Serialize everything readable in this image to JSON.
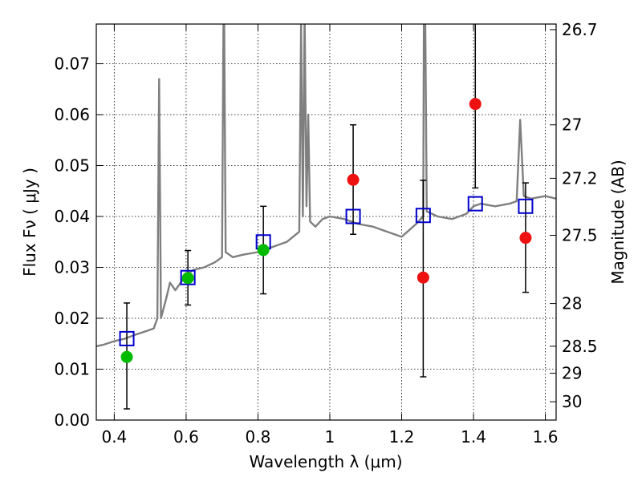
{
  "chart_data": {
    "type": "scatter",
    "title": "",
    "xlabel": "Wavelength  λ (μm)",
    "ylabel": "Flux  Fν  ( μJy )",
    "ylabel_right": "Magnitude (AB)",
    "xlim": [
      0.35,
      1.63
    ],
    "ylim": [
      0.0,
      0.0778
    ],
    "x_ticks": [
      0.4,
      0.6,
      0.8,
      1.0,
      1.2,
      1.4,
      1.6
    ],
    "x_tick_labels": [
      "0.4",
      "0.6",
      "0.8",
      "1",
      "1.2",
      "1.4",
      "1.6"
    ],
    "y_ticks": [
      0.0,
      0.01,
      0.02,
      0.03,
      0.04,
      0.05,
      0.06,
      0.07
    ],
    "y_tick_labels": [
      "0.00",
      "0.01",
      "0.02",
      "0.03",
      "0.04",
      "0.05",
      "0.06",
      "0.07"
    ],
    "right_axis_ticks": [
      {
        "label": "26.7",
        "flux": 0.0767
      },
      {
        "label": "27",
        "flux": 0.058
      },
      {
        "label": "27.2",
        "flux": 0.0475
      },
      {
        "label": "27.5",
        "flux": 0.0363
      },
      {
        "label": "28",
        "flux": 0.0229
      },
      {
        "label": "28.5",
        "flux": 0.0145
      },
      {
        "label": "29",
        "flux": 0.0092
      },
      {
        "label": "30",
        "flux": 0.0036
      }
    ],
    "grid": true,
    "colors": {
      "spectrum": "#7f7f7f",
      "model_marker": "#0000cc",
      "green_marker": "#00bb00",
      "red_marker": "#ee1111",
      "errorbar": "#000000"
    },
    "spectrum": {
      "x": [
        0.35,
        0.37,
        0.4,
        0.43,
        0.46,
        0.49,
        0.51,
        0.52,
        0.525,
        0.53,
        0.545,
        0.555,
        0.57,
        0.58,
        0.6,
        0.62,
        0.65,
        0.68,
        0.7,
        0.705,
        0.71,
        0.73,
        0.76,
        0.8,
        0.84,
        0.88,
        0.915,
        0.92,
        0.925,
        0.93,
        0.935,
        0.94,
        0.945,
        0.96,
        0.98,
        1.0,
        1.04,
        1.08,
        1.12,
        1.16,
        1.2,
        1.24,
        1.26,
        1.262,
        1.265,
        1.27,
        1.3,
        1.34,
        1.38,
        1.4,
        1.42,
        1.46,
        1.5,
        1.52,
        1.53,
        1.54,
        1.56,
        1.6,
        1.63
      ],
      "y": [
        0.0145,
        0.0148,
        0.0155,
        0.016,
        0.0168,
        0.0175,
        0.018,
        0.02,
        0.067,
        0.02,
        0.024,
        0.027,
        0.0255,
        0.0265,
        0.0285,
        0.0295,
        0.03,
        0.031,
        0.032,
        0.09,
        0.033,
        0.032,
        0.0325,
        0.033,
        0.034,
        0.035,
        0.037,
        0.078,
        0.04,
        0.08,
        0.042,
        0.06,
        0.039,
        0.038,
        0.0395,
        0.04,
        0.0395,
        0.0385,
        0.038,
        0.037,
        0.036,
        0.0385,
        0.04,
        0.085,
        0.085,
        0.041,
        0.04,
        0.0395,
        0.0405,
        0.042,
        0.0425,
        0.042,
        0.0425,
        0.043,
        0.059,
        0.044,
        0.0435,
        0.044,
        0.0435
      ]
    },
    "series": [
      {
        "marker": "open-square",
        "color": "#0000cc",
        "x": [
          0.435,
          0.605,
          0.815,
          1.065,
          1.26,
          1.405,
          1.545
        ],
        "y": [
          0.016,
          0.028,
          0.035,
          0.04,
          0.0402,
          0.0425,
          0.042
        ]
      },
      {
        "marker": "filled-circle",
        "color": "#00bb00",
        "x": [
          0.435,
          0.605,
          0.815
        ],
        "y": [
          0.0124,
          0.0279,
          0.0334
        ],
        "yerr_low": [
          0.0102,
          0.0053,
          0.0086
        ],
        "yerr_high": [
          0.0106,
          0.0054,
          0.0086
        ]
      },
      {
        "marker": "filled-circle",
        "color": "#ee1111",
        "x": [
          1.065,
          1.26,
          1.405,
          1.545
        ],
        "y": [
          0.0472,
          0.028,
          0.0621,
          0.0358
        ],
        "yerr_low": [
          0.0107,
          0.0195,
          0.0165,
          0.0107
        ],
        "yerr_high": [
          0.0108,
          0.0191,
          0.016,
          0.0108
        ]
      }
    ]
  }
}
